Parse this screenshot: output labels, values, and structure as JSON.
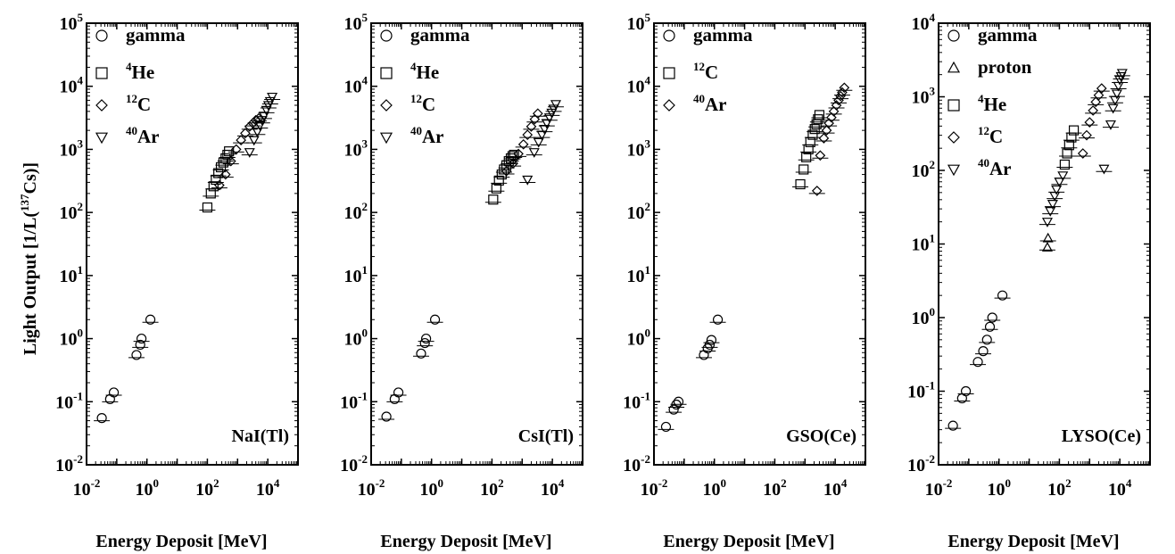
{
  "figure": {
    "ylabel": "Light Output [1/L(",
    "ylabel_sup": "137",
    "ylabel_tail": "Cs)]"
  },
  "chart_data": [
    {
      "type": "scatter",
      "title": "NaI(Tl)",
      "xlabel": "Energy Deposit [MeV]",
      "ylabel": "Light Output [1/L(137Cs)]",
      "xscale": "log",
      "yscale": "log",
      "xlim": [
        0.01,
        100000
      ],
      "ylim": [
        0.01,
        100000
      ],
      "x_ticks": [
        {
          "base": "10",
          "exp": "-2"
        },
        {
          "base": "10",
          "exp": "0"
        },
        {
          "base": "10",
          "exp": "2"
        },
        {
          "base": "10",
          "exp": "4"
        }
      ],
      "y_ticks": [
        {
          "base": "10",
          "exp": "-2"
        },
        {
          "base": "10",
          "exp": "-1"
        },
        {
          "base": "10",
          "exp": "0"
        },
        {
          "base": "10",
          "exp": "1"
        },
        {
          "base": "10",
          "exp": "2"
        },
        {
          "base": "10",
          "exp": "3"
        },
        {
          "base": "10",
          "exp": "4"
        },
        {
          "base": "10",
          "exp": "5"
        }
      ],
      "legend_position": "top-left",
      "series": [
        {
          "name": "gamma",
          "marker": "circle",
          "sup": "",
          "base": "gamma",
          "x": [
            0.032,
            0.06,
            0.08,
            0.45,
            0.6,
            0.66,
            1.3
          ],
          "y": [
            0.055,
            0.11,
            0.14,
            0.55,
            0.8,
            1.0,
            2.0
          ]
        },
        {
          "name": "4He",
          "marker": "square",
          "sup": "4",
          "base": "He",
          "x": [
            100,
            130,
            160,
            190,
            230,
            280,
            340,
            400,
            460,
            520
          ],
          "y": [
            120,
            200,
            260,
            330,
            420,
            520,
            620,
            720,
            820,
            930
          ]
        },
        {
          "name": "12C",
          "marker": "diamond",
          "sup": "12",
          "base": "C",
          "x": [
            250,
            400,
            600,
            900,
            1300,
            1800,
            2500,
            3200,
            4000,
            5000
          ],
          "y": [
            270,
            400,
            650,
            1000,
            1400,
            1800,
            2300,
            2600,
            2900,
            3100
          ]
        },
        {
          "name": "40Ar",
          "marker": "triangle-down",
          "sup": "40",
          "base": "Ar",
          "x": [
            2500,
            3500,
            4500,
            5500,
            6500,
            7500,
            9000,
            10500,
            12000,
            14000
          ],
          "y": [
            900,
            1400,
            1900,
            2400,
            2900,
            3400,
            4200,
            5000,
            5800,
            6800
          ]
        }
      ]
    },
    {
      "type": "scatter",
      "title": "CsI(Tl)",
      "xlabel": "Energy Deposit [MeV]",
      "ylabel": "Light Output [1/L(137Cs)]",
      "xscale": "log",
      "yscale": "log",
      "xlim": [
        0.01,
        100000
      ],
      "ylim": [
        0.01,
        100000
      ],
      "x_ticks": [
        {
          "base": "10",
          "exp": "-2"
        },
        {
          "base": "10",
          "exp": "0"
        },
        {
          "base": "10",
          "exp": "2"
        },
        {
          "base": "10",
          "exp": "4"
        }
      ],
      "y_ticks": [
        {
          "base": "10",
          "exp": "-2"
        },
        {
          "base": "10",
          "exp": "-1"
        },
        {
          "base": "10",
          "exp": "0"
        },
        {
          "base": "10",
          "exp": "1"
        },
        {
          "base": "10",
          "exp": "2"
        },
        {
          "base": "10",
          "exp": "3"
        },
        {
          "base": "10",
          "exp": "4"
        },
        {
          "base": "10",
          "exp": "5"
        }
      ],
      "legend_position": "top-left",
      "series": [
        {
          "name": "gamma",
          "marker": "circle",
          "sup": "",
          "base": "gamma",
          "x": [
            0.032,
            0.06,
            0.08,
            0.45,
            0.6,
            0.66,
            1.3
          ],
          "y": [
            0.058,
            0.11,
            0.14,
            0.58,
            0.85,
            1.0,
            2.0
          ]
        },
        {
          "name": "4He",
          "marker": "square",
          "sup": "4",
          "base": "He",
          "x": [
            110,
            140,
            170,
            210,
            250,
            300,
            360,
            420,
            480,
            540
          ],
          "y": [
            160,
            240,
            320,
            400,
            480,
            560,
            650,
            720,
            780,
            820
          ]
        },
        {
          "name": "12C",
          "marker": "diamond",
          "sup": "12",
          "base": "C",
          "x": [
            300,
            500,
            750,
            1100,
            1500,
            2000,
            2600,
            3300
          ],
          "y": [
            450,
            600,
            850,
            1200,
            1700,
            2300,
            3000,
            3700
          ]
        },
        {
          "name": "40Ar",
          "marker": "triangle-down",
          "sup": "40",
          "base": "Ar",
          "x": [
            1500,
            2500,
            3500,
            4500,
            5500,
            6500,
            8000,
            9500,
            11000,
            13000
          ],
          "y": [
            330,
            900,
            1300,
            1700,
            2100,
            2600,
            3200,
            3800,
            4400,
            5200
          ]
        }
      ]
    },
    {
      "type": "scatter",
      "title": "GSO(Ce)",
      "xlabel": "Energy Deposit [MeV]",
      "ylabel": "Light Output [1/L(137Cs)]",
      "xscale": "log",
      "yscale": "log",
      "xlim": [
        0.01,
        100000
      ],
      "ylim": [
        0.01,
        100000
      ],
      "x_ticks": [
        {
          "base": "10",
          "exp": "-2"
        },
        {
          "base": "10",
          "exp": "0"
        },
        {
          "base": "10",
          "exp": "2"
        },
        {
          "base": "10",
          "exp": "4"
        }
      ],
      "y_ticks": [
        {
          "base": "10",
          "exp": "-2"
        },
        {
          "base": "10",
          "exp": "-1"
        },
        {
          "base": "10",
          "exp": "0"
        },
        {
          "base": "10",
          "exp": "1"
        },
        {
          "base": "10",
          "exp": "2"
        },
        {
          "base": "10",
          "exp": "3"
        },
        {
          "base": "10",
          "exp": "4"
        },
        {
          "base": "10",
          "exp": "5"
        }
      ],
      "legend_position": "top-left",
      "series": [
        {
          "name": "gamma",
          "marker": "circle",
          "sup": "",
          "base": "gamma",
          "x": [
            0.025,
            0.045,
            0.055,
            0.065,
            0.45,
            0.6,
            0.7,
            0.8,
            1.3
          ],
          "y": [
            0.04,
            0.075,
            0.09,
            0.1,
            0.55,
            0.7,
            0.8,
            0.95,
            2.0
          ]
        },
        {
          "name": "12C",
          "marker": "square",
          "sup": "12",
          "base": "C",
          "x": [
            700,
            900,
            1100,
            1300,
            1500,
            1800,
            2100,
            2400,
            2700,
            3000
          ],
          "y": [
            280,
            480,
            750,
            1000,
            1300,
            1700,
            2100,
            2500,
            3000,
            3500
          ]
        },
        {
          "name": "40Ar",
          "marker": "diamond",
          "sup": "40",
          "base": "Ar",
          "x": [
            2500,
            3200,
            4200,
            5200,
            6200,
            7500,
            9000,
            11000,
            13000,
            15000,
            17000,
            20000
          ],
          "y": [
            220,
            800,
            1500,
            2000,
            2600,
            3200,
            4000,
            5000,
            6000,
            7000,
            8000,
            9500
          ]
        }
      ]
    },
    {
      "type": "scatter",
      "title": "LYSO(Ce)",
      "xlabel": "Energy Deposit [MeV]",
      "ylabel": "Light Output [1/L(137Cs)]",
      "xscale": "log",
      "yscale": "log",
      "xlim": [
        0.01,
        100000
      ],
      "ylim": [
        0.01,
        10000
      ],
      "x_ticks": [
        {
          "base": "10",
          "exp": "-2"
        },
        {
          "base": "10",
          "exp": "0"
        },
        {
          "base": "10",
          "exp": "2"
        },
        {
          "base": "10",
          "exp": "4"
        }
      ],
      "y_ticks": [
        {
          "base": "10",
          "exp": "-2"
        },
        {
          "base": "10",
          "exp": "-1"
        },
        {
          "base": "10",
          "exp": "0"
        },
        {
          "base": "10",
          "exp": "1"
        },
        {
          "base": "10",
          "exp": "2"
        },
        {
          "base": "10",
          "exp": "3"
        },
        {
          "base": "10",
          "exp": "4"
        }
      ],
      "legend_position": "top-left",
      "series": [
        {
          "name": "gamma",
          "marker": "circle",
          "sup": "",
          "base": "gamma",
          "x": [
            0.03,
            0.06,
            0.08,
            0.2,
            0.3,
            0.4,
            0.5,
            0.6,
            1.3
          ],
          "y": [
            0.034,
            0.08,
            0.1,
            0.25,
            0.35,
            0.5,
            0.75,
            1.0,
            2.0
          ]
        },
        {
          "name": "proton",
          "marker": "triangle-up",
          "sup": "",
          "base": "proton",
          "x": [
            40,
            42
          ],
          "y": [
            9,
            12
          ]
        },
        {
          "name": "4He",
          "marker": "square",
          "sup": "4",
          "base": "He",
          "x": [
            150,
            180,
            210,
            250,
            300
          ],
          "y": [
            120,
            170,
            220,
            280,
            350
          ]
        },
        {
          "name": "12C",
          "marker": "diamond",
          "sup": "12",
          "base": "C",
          "x": [
            600,
            800,
            1000,
            1300,
            1600,
            2000,
            2500
          ],
          "y": [
            170,
            300,
            450,
            650,
            850,
            1050,
            1300
          ]
        },
        {
          "name": "40Ar",
          "marker": "triangle-down",
          "sup": "40",
          "base": "Ar",
          "x": [
            40,
            50,
            60,
            70,
            80,
            100,
            130,
            3000,
            5000,
            6000,
            7000,
            8000,
            9000,
            10000,
            11000,
            12000
          ],
          "y": [
            20,
            28,
            35,
            45,
            55,
            70,
            85,
            105,
            420,
            700,
            900,
            1100,
            1400,
            1700,
            1900,
            2100
          ]
        }
      ]
    }
  ]
}
